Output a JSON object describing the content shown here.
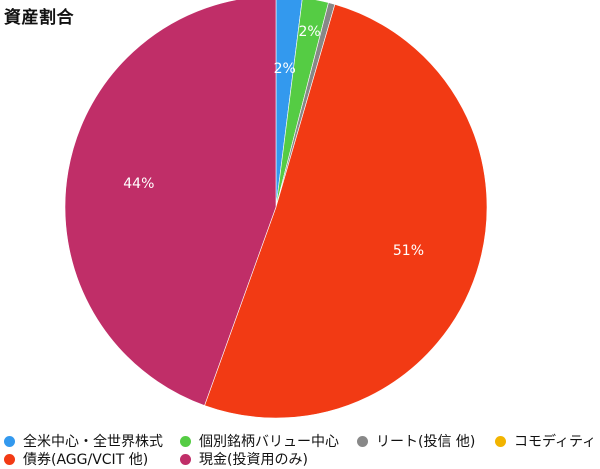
{
  "chart_data": {
    "type": "pie",
    "title": "資産割合",
    "slices": [
      {
        "label": "全米中心・全世界株式",
        "value": 2,
        "color": "#3399ee",
        "value_label": "2%"
      },
      {
        "label": "個別銘柄バリュー中心",
        "value": 2,
        "color": "#55cc44",
        "value_label": "2%"
      },
      {
        "label": "リート(投信 他)",
        "value": 0.5,
        "color": "#888888",
        "value_label": ""
      },
      {
        "label": "コモディティ",
        "value": 0,
        "color": "#f2b400",
        "value_label": ""
      },
      {
        "label": "債券(AGG/VCIT 他)",
        "value": 51,
        "color": "#f23a14",
        "value_label": "51%"
      },
      {
        "label": "現金(投資用のみ)",
        "value": 44.5,
        "color": "#c02e68",
        "value_label": "44%"
      }
    ],
    "legend_position": "bottom"
  }
}
